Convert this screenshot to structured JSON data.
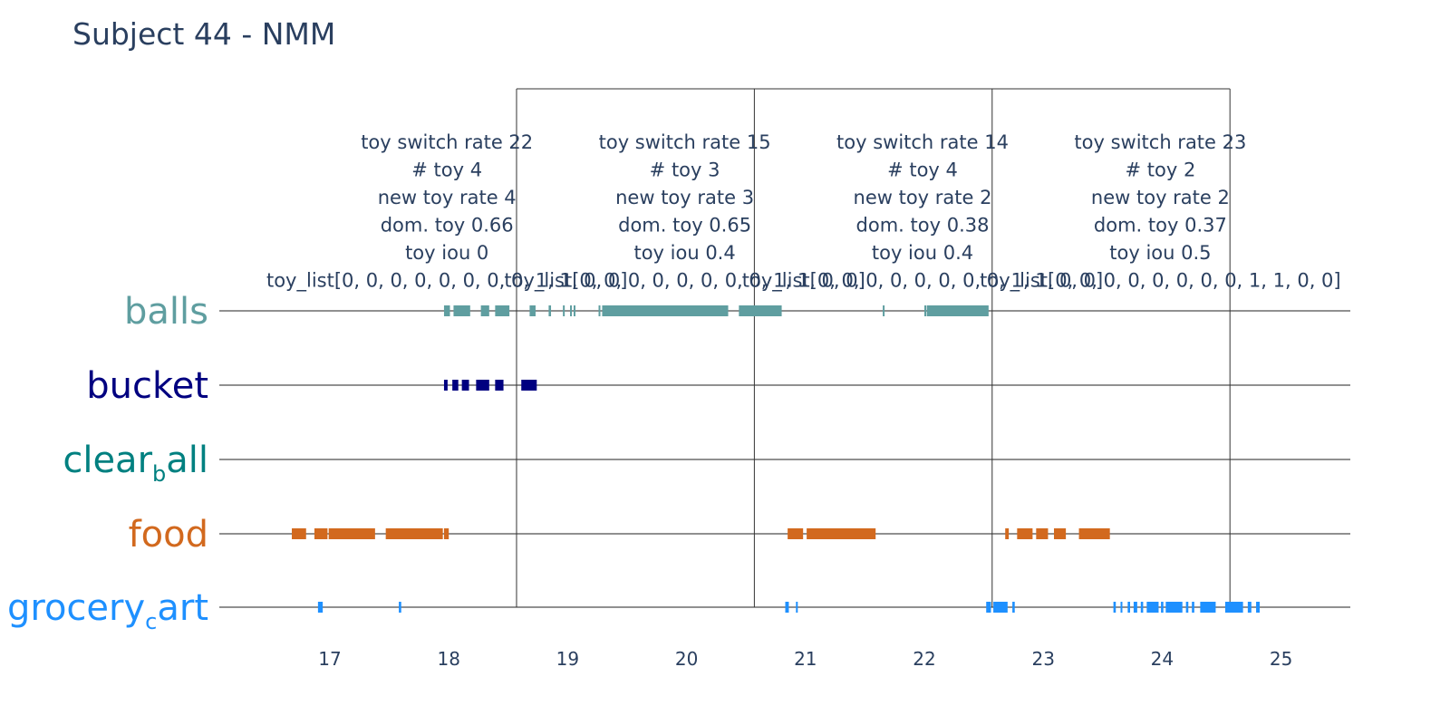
{
  "chart_data": {
    "type": "timeline",
    "title": "Subject 44 - NMM",
    "xlabel": "",
    "ylabel": "",
    "xlim": [
      16.1,
      25.6
    ],
    "xticks": [
      17,
      18,
      19,
      20,
      21,
      22,
      23,
      24,
      25
    ],
    "grid": false,
    "legend": "none",
    "categories": [
      {
        "name": "balls",
        "label_main": "balls",
        "label_sub": "",
        "label_rest": "",
        "color": "#5f9ea0",
        "intervals": [
          [
            17.96,
            18.01
          ],
          [
            18.04,
            18.18
          ],
          [
            18.27,
            18.34
          ],
          [
            18.39,
            18.51
          ],
          [
            18.68,
            18.73
          ],
          [
            18.84,
            18.86
          ],
          [
            18.96,
            18.97
          ],
          [
            19.02,
            19.03
          ],
          [
            19.05,
            19.06
          ],
          [
            19.26,
            19.27
          ],
          [
            19.29,
            20.35
          ],
          [
            20.44,
            20.8
          ],
          [
            21.65,
            21.66
          ],
          [
            22.0,
            22.01
          ],
          [
            22.02,
            22.54
          ]
        ]
      },
      {
        "name": "bucket",
        "label_main": "bucket",
        "label_sub": "",
        "label_rest": "",
        "color": "#000080",
        "intervals": [
          [
            17.96,
            17.99
          ],
          [
            18.03,
            18.08
          ],
          [
            18.11,
            18.17
          ],
          [
            18.23,
            18.34
          ],
          [
            18.39,
            18.46
          ],
          [
            18.61,
            18.74
          ]
        ]
      },
      {
        "name": "clear_ball",
        "label_main": "clear",
        "label_sub": "b",
        "label_rest": "all",
        "color": "#008080",
        "intervals": []
      },
      {
        "name": "food",
        "label_main": "food",
        "label_sub": "",
        "label_rest": "",
        "color": "#d2691e",
        "intervals": [
          [
            16.68,
            16.8
          ],
          [
            16.87,
            16.98
          ],
          [
            16.99,
            17.38
          ],
          [
            17.47,
            17.95
          ],
          [
            17.96,
            18.0
          ],
          [
            20.85,
            20.98
          ],
          [
            21.01,
            21.59
          ],
          [
            22.68,
            22.71
          ],
          [
            22.78,
            22.91
          ],
          [
            22.94,
            23.04
          ],
          [
            23.09,
            23.19
          ],
          [
            23.3,
            23.56
          ]
        ]
      },
      {
        "name": "grocery_cart",
        "label_main": "grocery",
        "label_sub": "c",
        "label_rest": "art",
        "color": "#1e90ff",
        "intervals": [
          [
            16.9,
            16.94
          ],
          [
            17.58,
            17.6
          ],
          [
            20.83,
            20.86
          ],
          [
            20.92,
            20.93
          ],
          [
            22.52,
            22.56
          ],
          [
            22.58,
            22.7
          ],
          [
            22.74,
            22.76
          ],
          [
            23.59,
            23.61
          ],
          [
            23.65,
            23.66
          ],
          [
            23.71,
            23.73
          ],
          [
            23.76,
            23.79
          ],
          [
            23.82,
            23.84
          ],
          [
            23.87,
            23.97
          ],
          [
            23.99,
            24.01
          ],
          [
            24.03,
            24.17
          ],
          [
            24.2,
            24.22
          ],
          [
            24.25,
            24.27
          ],
          [
            24.32,
            24.45
          ],
          [
            24.53,
            24.68
          ],
          [
            24.72,
            24.75
          ],
          [
            24.79,
            24.82
          ]
        ]
      }
    ],
    "window_boundaries": [
      18.57,
      20.57,
      22.57,
      24.57
    ],
    "annotations": [
      {
        "center": 18.0,
        "lines": [
          "toy switch rate 22",
          "# toy 4",
          "new toy rate 4",
          "dom. toy 0.66",
          "toy iou 0",
          "toy_list[0, 0, 0, 0, 0, 0, 0, 0, 1, 1, 0, 0]"
        ]
      },
      {
        "center": 20.0,
        "lines": [
          "toy switch rate 15",
          "# toy 3",
          "new toy rate 3",
          "dom. toy 0.65",
          "toy iou 0.4",
          "toy_list[0, 0, 0, 0, 0, 0, 0, 0, 1, 1, 0, 0]"
        ]
      },
      {
        "center": 22.0,
        "lines": [
          "toy switch rate 14",
          "# toy 4",
          "new toy rate 2",
          "dom. toy 0.38",
          "toy iou 0.4",
          "toy_list[0, 0, 0, 0, 0, 0, 0, 0, 1, 1, 0, 0]"
        ]
      },
      {
        "center": 24.0,
        "lines": [
          "toy switch rate 23",
          "# toy 2",
          "new toy rate 2",
          "dom. toy 0.37",
          "toy iou 0.5",
          "toy_list[0, 0, 0, 0, 0, 0, 0, 0, 1, 1, 0, 0]"
        ]
      }
    ]
  }
}
